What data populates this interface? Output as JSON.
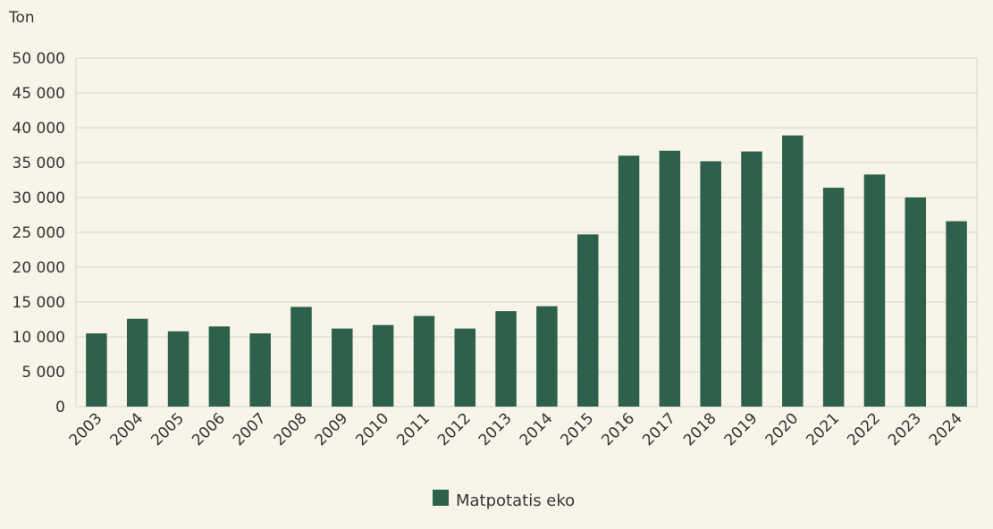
{
  "chart_data": {
    "type": "bar",
    "ylabel": "Ton",
    "categories": [
      "2003",
      "2004",
      "2005",
      "2006",
      "2007",
      "2008",
      "2009",
      "2010",
      "2011",
      "2012",
      "2013",
      "2014",
      "2015",
      "2016",
      "2017",
      "2018",
      "2019",
      "2020",
      "2021",
      "2022",
      "2023",
      "2024"
    ],
    "series": [
      {
        "name": "Matpotatis eko",
        "color": "#2d614c",
        "values": [
          10500,
          12600,
          10800,
          11500,
          10500,
          14300,
          11200,
          11700,
          13000,
          11200,
          13700,
          14400,
          24700,
          36000,
          36700,
          35200,
          36600,
          38900,
          31400,
          33300,
          30000,
          26600
        ]
      }
    ],
    "ylim": [
      0,
      50000
    ],
    "yticks": [
      0,
      5000,
      10000,
      15000,
      20000,
      25000,
      30000,
      35000,
      40000,
      45000,
      50000
    ],
    "ytick_labels": [
      "0",
      "5 000",
      "10 000",
      "15 000",
      "20 000",
      "25 000",
      "30 000",
      "35 000",
      "40 000",
      "45 000",
      "50 000"
    ],
    "grid": true,
    "legend_position": "bottom-center"
  }
}
